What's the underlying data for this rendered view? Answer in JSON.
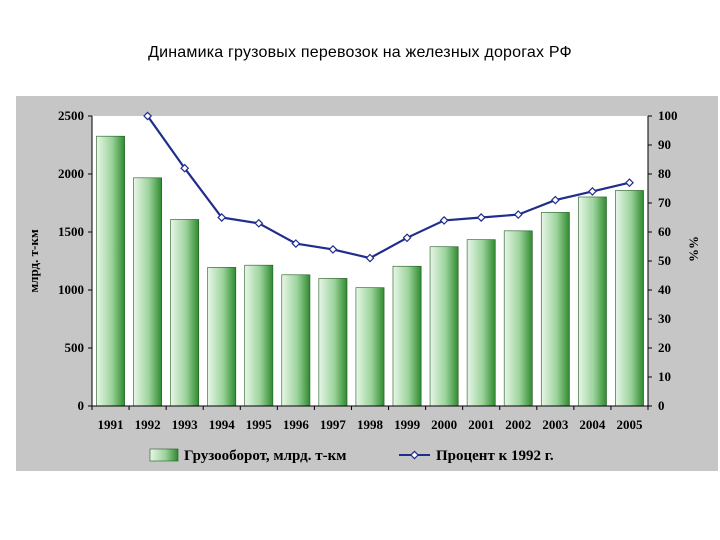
{
  "title": "Динамика грузовых перевозок на железных дорогах РФ",
  "colors": {
    "panel": "#c6c6c6",
    "plot": "#ffffff",
    "bar_light": "#e8f6e8",
    "bar_dark": "#2f8a2f",
    "line": "#1f2d8c",
    "marker_fill": "#ffffff"
  },
  "chart_data": {
    "type": "bar+line",
    "categories": [
      "1991",
      "1992",
      "1993",
      "1994",
      "1995",
      "1996",
      "1997",
      "1998",
      "1999",
      "2000",
      "2001",
      "2002",
      "2003",
      "2004",
      "2005"
    ],
    "series": [
      {
        "name": "Грузооборот, млрд. т-км",
        "type": "bar",
        "axis": "left",
        "values": [
          2326,
          1967,
          1608,
          1195,
          1214,
          1131,
          1100,
          1020,
          1205,
          1373,
          1434,
          1510,
          1669,
          1802,
          1858
        ]
      },
      {
        "name": "Процент к 1992 г.",
        "type": "line",
        "axis": "right",
        "values": [
          null,
          100,
          82,
          65,
          63,
          56,
          54,
          51,
          58,
          64,
          65,
          66,
          71,
          74,
          77
        ]
      }
    ],
    "ylabel": "млрд. т-км",
    "y2label": "%%",
    "ylim": [
      0,
      2500
    ],
    "y2lim": [
      0,
      100
    ],
    "yticks": [
      "0",
      "500",
      "1000",
      "1500",
      "2000",
      "2500"
    ],
    "y2ticks": [
      "0",
      "10",
      "20",
      "30",
      "40",
      "50",
      "60",
      "70",
      "80",
      "90",
      "100"
    ],
    "grid": false,
    "legend_position": "bottom"
  }
}
